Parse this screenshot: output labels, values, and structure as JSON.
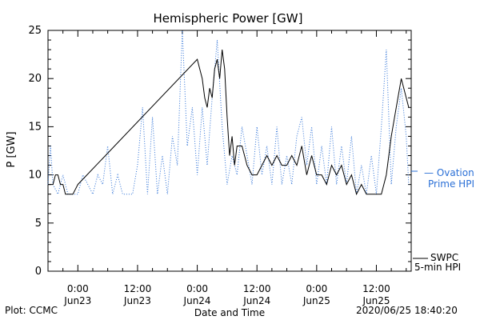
{
  "chart_data": {
    "type": "line",
    "title": "Hemispheric Power [GW]",
    "xlabel": "Date and Time",
    "ylabel": "P [GW]",
    "ylim": [
      0,
      25
    ],
    "y_ticks": [
      0,
      5,
      10,
      15,
      20,
      25
    ],
    "x_ticks": [
      {
        "time": "2020-06-23 00:00",
        "line1": "0:00",
        "line2": "Jun23"
      },
      {
        "time": "2020-06-23 12:00",
        "line1": "12:00",
        "line2": "Jun23"
      },
      {
        "time": "2020-06-24 00:00",
        "line1": "0:00",
        "line2": "Jun24"
      },
      {
        "time": "2020-06-24 12:00",
        "line1": "12:00",
        "line2": "Jun24"
      },
      {
        "time": "2020-06-25 00:00",
        "line1": "0:00",
        "line2": "Jun25"
      },
      {
        "time": "2020-06-25 12:00",
        "line1": "12:00",
        "line2": "Jun25"
      }
    ],
    "xlim": [
      "2020-06-22 18:00",
      "2020-06-25 19:00"
    ],
    "grid": false,
    "series": [
      {
        "name": "Ovation Prime HPI",
        "legend_line1": "Ovation",
        "legend_line2": "Prime HPI",
        "color": "#2a6fd6",
        "style": "dotted",
        "points": [
          [
            "2020-06-22 18:00",
            9
          ],
          [
            "2020-06-22 18:30",
            13
          ],
          [
            "2020-06-22 19:00",
            9
          ],
          [
            "2020-06-22 20:00",
            8
          ],
          [
            "2020-06-22 21:00",
            10
          ],
          [
            "2020-06-22 22:00",
            8
          ],
          [
            "2020-06-23 00:00",
            8
          ],
          [
            "2020-06-23 01:00",
            10
          ],
          [
            "2020-06-23 02:00",
            9
          ],
          [
            "2020-06-23 03:00",
            8
          ],
          [
            "2020-06-23 04:00",
            10
          ],
          [
            "2020-06-23 05:00",
            9
          ],
          [
            "2020-06-23 06:00",
            13
          ],
          [
            "2020-06-23 07:00",
            8
          ],
          [
            "2020-06-23 08:00",
            10
          ],
          [
            "2020-06-23 09:00",
            8
          ],
          [
            "2020-06-23 11:00",
            8
          ],
          [
            "2020-06-23 12:00",
            11
          ],
          [
            "2020-06-23 13:00",
            17
          ],
          [
            "2020-06-23 14:00",
            8
          ],
          [
            "2020-06-23 15:00",
            16
          ],
          [
            "2020-06-23 16:00",
            8
          ],
          [
            "2020-06-23 17:00",
            12
          ],
          [
            "2020-06-23 18:00",
            8
          ],
          [
            "2020-06-23 19:00",
            14
          ],
          [
            "2020-06-23 20:00",
            11
          ],
          [
            "2020-06-23 21:00",
            25
          ],
          [
            "2020-06-23 22:00",
            13
          ],
          [
            "2020-06-23 23:00",
            17
          ],
          [
            "2020-06-24 00:00",
            10
          ],
          [
            "2020-06-24 01:00",
            17
          ],
          [
            "2020-06-24 02:00",
            11
          ],
          [
            "2020-06-24 03:00",
            18
          ],
          [
            "2020-06-24 04:00",
            24
          ],
          [
            "2020-06-24 05:00",
            15
          ],
          [
            "2020-06-24 06:00",
            9
          ],
          [
            "2020-06-24 07:00",
            12
          ],
          [
            "2020-06-24 08:00",
            10
          ],
          [
            "2020-06-24 09:00",
            15
          ],
          [
            "2020-06-24 10:00",
            12
          ],
          [
            "2020-06-24 11:00",
            9
          ],
          [
            "2020-06-24 12:00",
            15
          ],
          [
            "2020-06-24 13:00",
            10
          ],
          [
            "2020-06-24 14:00",
            13
          ],
          [
            "2020-06-24 15:00",
            9
          ],
          [
            "2020-06-24 16:00",
            15
          ],
          [
            "2020-06-24 17:00",
            9
          ],
          [
            "2020-06-24 18:00",
            12
          ],
          [
            "2020-06-24 19:00",
            9
          ],
          [
            "2020-06-24 20:00",
            14
          ],
          [
            "2020-06-24 21:00",
            16
          ],
          [
            "2020-06-24 22:00",
            11
          ],
          [
            "2020-06-24 23:00",
            15
          ],
          [
            "2020-06-25 00:00",
            9
          ],
          [
            "2020-06-25 01:00",
            13
          ],
          [
            "2020-06-25 02:00",
            9
          ],
          [
            "2020-06-25 03:00",
            15
          ],
          [
            "2020-06-25 04:00",
            9
          ],
          [
            "2020-06-25 05:00",
            13
          ],
          [
            "2020-06-25 06:00",
            9
          ],
          [
            "2020-06-25 07:00",
            14
          ],
          [
            "2020-06-25 08:00",
            8
          ],
          [
            "2020-06-25 09:00",
            11
          ],
          [
            "2020-06-25 10:00",
            8
          ],
          [
            "2020-06-25 11:00",
            12
          ],
          [
            "2020-06-25 12:00",
            8
          ],
          [
            "2020-06-25 13:00",
            15
          ],
          [
            "2020-06-25 14:00",
            23
          ],
          [
            "2020-06-25 15:00",
            9
          ],
          [
            "2020-06-25 16:00",
            15
          ],
          [
            "2020-06-25 17:00",
            19
          ],
          [
            "2020-06-25 18:00",
            14
          ],
          [
            "2020-06-25 18:30",
            9
          ]
        ]
      },
      {
        "name": "SWPC 5-min HPI",
        "legend_line1": "SWPC",
        "legend_line2": "5-min HPI",
        "color": "#000000",
        "style": "solid",
        "points": [
          [
            "2020-06-22 18:00",
            9
          ],
          [
            "2020-06-22 19:00",
            9
          ],
          [
            "2020-06-22 19:30",
            10
          ],
          [
            "2020-06-22 20:00",
            10
          ],
          [
            "2020-06-22 20:30",
            9
          ],
          [
            "2020-06-22 21:00",
            9
          ],
          [
            "2020-06-22 21:30",
            8
          ],
          [
            "2020-06-22 23:00",
            8
          ],
          [
            "2020-06-22 23:30",
            8.5
          ],
          [
            "2020-06-23 00:00",
            9
          ],
          [
            "2020-06-24 00:00",
            22
          ],
          [
            "2020-06-24 00:30",
            21
          ],
          [
            "2020-06-24 01:00",
            20
          ],
          [
            "2020-06-24 01:30",
            18
          ],
          [
            "2020-06-24 02:00",
            17
          ],
          [
            "2020-06-24 02:30",
            19
          ],
          [
            "2020-06-24 03:00",
            18
          ],
          [
            "2020-06-24 03:30",
            21
          ],
          [
            "2020-06-24 04:00",
            22
          ],
          [
            "2020-06-24 04:30",
            20
          ],
          [
            "2020-06-24 05:00",
            23
          ],
          [
            "2020-06-24 05:30",
            21
          ],
          [
            "2020-06-24 06:00",
            16
          ],
          [
            "2020-06-24 06:30",
            12
          ],
          [
            "2020-06-24 07:00",
            14
          ],
          [
            "2020-06-24 07:30",
            11
          ],
          [
            "2020-06-24 08:00",
            13
          ],
          [
            "2020-06-24 09:00",
            13
          ],
          [
            "2020-06-24 10:00",
            11
          ],
          [
            "2020-06-24 11:00",
            10
          ],
          [
            "2020-06-24 12:00",
            10
          ],
          [
            "2020-06-24 13:00",
            11
          ],
          [
            "2020-06-24 14:00",
            12
          ],
          [
            "2020-06-24 15:00",
            11
          ],
          [
            "2020-06-24 16:00",
            12
          ],
          [
            "2020-06-24 17:00",
            11
          ],
          [
            "2020-06-24 18:00",
            11
          ],
          [
            "2020-06-24 19:00",
            12
          ],
          [
            "2020-06-24 20:00",
            11
          ],
          [
            "2020-06-24 21:00",
            13
          ],
          [
            "2020-06-24 22:00",
            10
          ],
          [
            "2020-06-24 23:00",
            12
          ],
          [
            "2020-06-25 00:00",
            10
          ],
          [
            "2020-06-25 01:00",
            10
          ],
          [
            "2020-06-25 02:00",
            9
          ],
          [
            "2020-06-25 03:00",
            11
          ],
          [
            "2020-06-25 04:00",
            10
          ],
          [
            "2020-06-25 05:00",
            11
          ],
          [
            "2020-06-25 06:00",
            9
          ],
          [
            "2020-06-25 07:00",
            10
          ],
          [
            "2020-06-25 08:00",
            8
          ],
          [
            "2020-06-25 09:00",
            9
          ],
          [
            "2020-06-25 10:00",
            8
          ],
          [
            "2020-06-25 11:00",
            8
          ],
          [
            "2020-06-25 12:00",
            8
          ],
          [
            "2020-06-25 13:00",
            8
          ],
          [
            "2020-06-25 14:00",
            10
          ],
          [
            "2020-06-25 15:00",
            14
          ],
          [
            "2020-06-25 16:00",
            17
          ],
          [
            "2020-06-25 17:00",
            20
          ],
          [
            "2020-06-25 17:30",
            19
          ],
          [
            "2020-06-25 18:00",
            18
          ],
          [
            "2020-06-25 18:30",
            17
          ]
        ]
      }
    ]
  },
  "footer": {
    "plot_label": "Plot: CCMC",
    "timestamp": "2020/06/25 18:40:20"
  }
}
